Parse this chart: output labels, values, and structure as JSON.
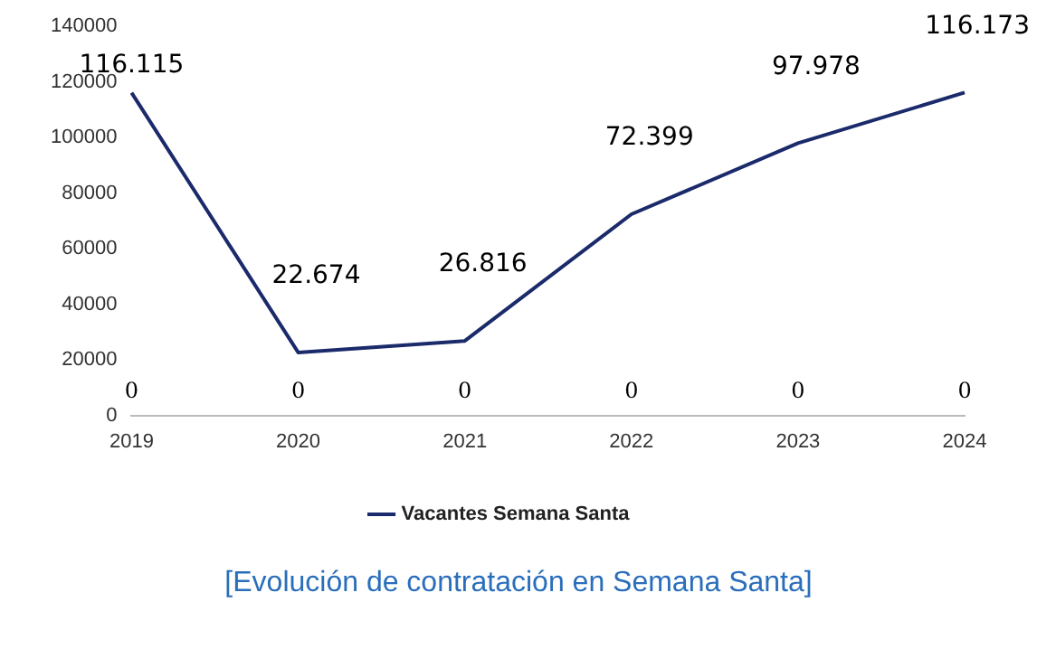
{
  "chart_data": {
    "type": "line",
    "categories": [
      "2019",
      "2020",
      "2021",
      "2022",
      "2023",
      "2024"
    ],
    "series": [
      {
        "name": "Vacantes Semana Santa",
        "color": "#1b2a6b",
        "values": [
          116115,
          22674,
          26816,
          72399,
          97978,
          116173
        ],
        "value_labels": [
          "116.115",
          "22.674",
          "26.816",
          "72.399",
          "97.978",
          "116.173"
        ]
      }
    ],
    "ylim": [
      0,
      140000
    ],
    "yticks": [
      0,
      20000,
      40000,
      60000,
      80000,
      100000,
      120000,
      140000
    ],
    "grid": false,
    "legend": "bottom",
    "marker": "none",
    "line_style": "solid",
    "annotations": [
      "0",
      "0",
      "0",
      "0",
      "0",
      "0",
      "[Evolución de contratación en Semana Santa]"
    ]
  }
}
